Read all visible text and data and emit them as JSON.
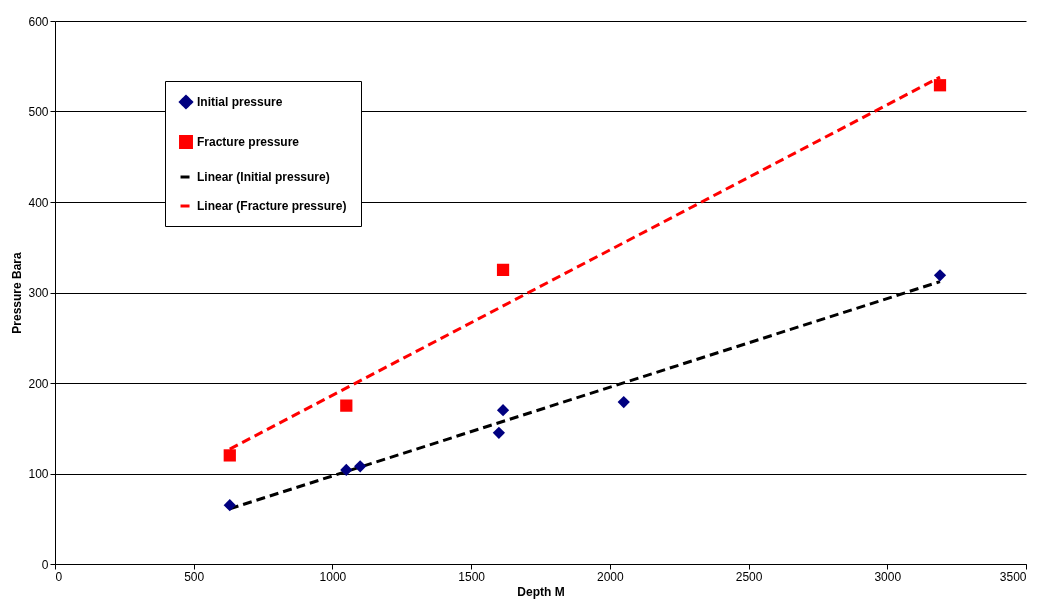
{
  "chart_data": {
    "type": "scatter",
    "xlabel": "Depth M",
    "ylabel": "Pressure Bara",
    "xlim": [
      0,
      3500
    ],
    "xticks": [
      0,
      500,
      1000,
      1500,
      2000,
      2500,
      3000,
      3500
    ],
    "ylim": [
      0,
      600
    ],
    "yticks": [
      0,
      100,
      200,
      300,
      400,
      500,
      600
    ],
    "grid": "y",
    "legend": "top left",
    "series": [
      {
        "name": "Initial pressure",
        "marker": "diamond",
        "color": "#000080",
        "x": [
          630,
          1050,
          1100,
          1600,
          1615,
          2050,
          3190
        ],
        "values": [
          65,
          104,
          108,
          145,
          170,
          179,
          319
        ]
      },
      {
        "name": "Fracture pressure",
        "marker": "square",
        "color": "#ff0000",
        "x": [
          630,
          1050,
          1615,
          3190
        ],
        "values": [
          120,
          175,
          325,
          529
        ]
      },
      {
        "name": "Linear (Initial pressure)",
        "type": "line",
        "marker": "none",
        "line_style": "dashed",
        "color": "#000000",
        "x": [
          630,
          3190
        ],
        "values": [
          61,
          312
        ]
      },
      {
        "name": "Linear (Fracture pressure)",
        "type": "line",
        "marker": "none",
        "line_style": "dashed",
        "color": "#ff0000",
        "x": [
          630,
          3190
        ],
        "values": [
          127,
          538
        ]
      }
    ]
  }
}
